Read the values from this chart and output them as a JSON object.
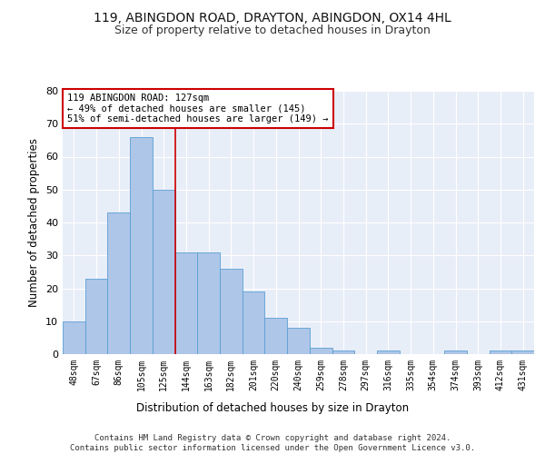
{
  "title_line1": "119, ABINGDON ROAD, DRAYTON, ABINGDON, OX14 4HL",
  "title_line2": "Size of property relative to detached houses in Drayton",
  "xlabel": "Distribution of detached houses by size in Drayton",
  "ylabel": "Number of detached properties",
  "categories": [
    "48sqm",
    "67sqm",
    "86sqm",
    "105sqm",
    "125sqm",
    "144sqm",
    "163sqm",
    "182sqm",
    "201sqm",
    "220sqm",
    "240sqm",
    "259sqm",
    "278sqm",
    "297sqm",
    "316sqm",
    "335sqm",
    "354sqm",
    "374sqm",
    "393sqm",
    "412sqm",
    "431sqm"
  ],
  "values": [
    10,
    23,
    43,
    66,
    50,
    31,
    31,
    26,
    19,
    11,
    8,
    2,
    1,
    0,
    1,
    0,
    0,
    1,
    0,
    1,
    1
  ],
  "bar_color": "#aec6e8",
  "bar_edge_color": "#5a9fd4",
  "vline_x": 4.5,
  "vline_color": "#cc0000",
  "annotation_text": "119 ABINGDON ROAD: 127sqm\n← 49% of detached houses are smaller (145)\n51% of semi-detached houses are larger (149) →",
  "annotation_box_color": "#ffffff",
  "annotation_box_edge": "#cc0000",
  "ylim": [
    0,
    80
  ],
  "yticks": [
    0,
    10,
    20,
    30,
    40,
    50,
    60,
    70,
    80
  ],
  "footer_text": "Contains HM Land Registry data © Crown copyright and database right 2024.\nContains public sector information licensed under the Open Government Licence v3.0.",
  "background_color": "#e8eef8",
  "grid_color": "#ffffff",
  "title_fontsize": 10,
  "subtitle_fontsize": 9,
  "tick_fontsize": 7,
  "label_fontsize": 8.5,
  "footer_fontsize": 6.5
}
